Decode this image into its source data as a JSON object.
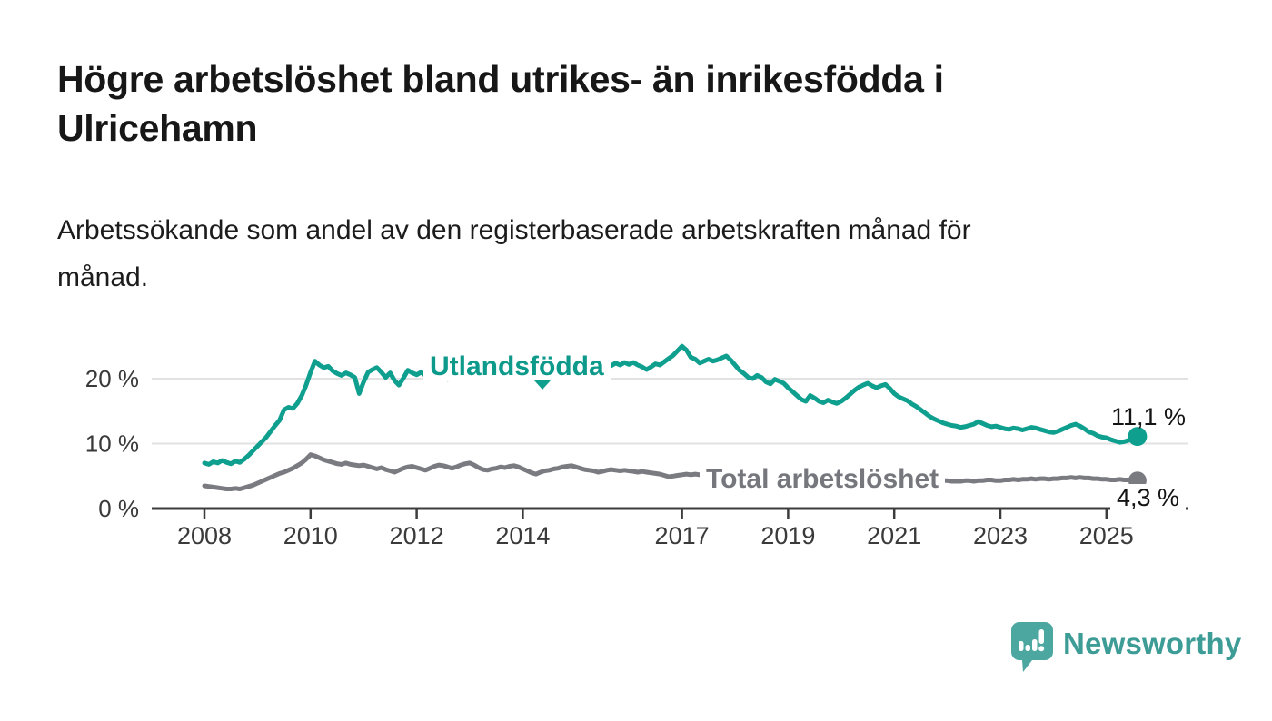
{
  "header": {
    "title_lines": [
      "Högre arbetslöshet bland utrikes- än inrikesfödda i",
      "Ulricehamn"
    ],
    "subtitle_lines": [
      "Arbetssökande som andel av den registerbaserade arbetskraften månad för",
      "månad."
    ]
  },
  "chart_data": {
    "type": "line",
    "title": "Högre arbetslöshet bland utrikes- än inrikesfödda i Ulricehamn",
    "subtitle": "Arbetssökande som andel av den registerbaserade arbetskraften månad för månad.",
    "unit": "%",
    "x_start_year": 2008,
    "x_step_years": 0.083333,
    "x_ticks": [
      {
        "year": 2008,
        "label": "2008"
      },
      {
        "year": 2010,
        "label": "2010"
      },
      {
        "year": 2012,
        "label": "2012"
      },
      {
        "year": 2014,
        "label": "2014"
      },
      {
        "year": 2017,
        "label": "2017"
      },
      {
        "year": 2019,
        "label": "2019"
      },
      {
        "year": 2021,
        "label": "2021"
      },
      {
        "year": 2023,
        "label": "2023"
      },
      {
        "year": 2025,
        "label": "2025"
      }
    ],
    "y_ticks": [
      {
        "value": 0,
        "label": "0 %"
      },
      {
        "value": 10,
        "label": "10 %"
      },
      {
        "value": 20,
        "label": "20 %"
      }
    ],
    "ylim": [
      0,
      26.5
    ],
    "grid": "horizontal",
    "legend_position": "inline-labels",
    "series": [
      {
        "name": "Utlandsfödda",
        "color": "#0f9f8f",
        "end_label": "11,1 %",
        "end_value": 11.1,
        "values": [
          7.0,
          6.8,
          7.2,
          7.0,
          7.4,
          7.1,
          6.9,
          7.3,
          7.1,
          7.6,
          8.2,
          8.9,
          9.6,
          10.3,
          11.0,
          11.9,
          12.8,
          13.6,
          15.2,
          15.6,
          15.4,
          16.2,
          17.4,
          19.0,
          21.0,
          22.7,
          22.1,
          21.7,
          21.9,
          21.2,
          20.8,
          20.5,
          20.9,
          20.6,
          20.2,
          17.7,
          19.5,
          21.0,
          21.4,
          21.7,
          21.0,
          20.2,
          20.9,
          19.7,
          19.0,
          20.1,
          21.3,
          20.9,
          20.6,
          21.0,
          20.5,
          20.8,
          20.3,
          20.6,
          20.1,
          19.9,
          20.4,
          20.7,
          21.0,
          20.8,
          21.2,
          20.9,
          21.3,
          21.0,
          20.7,
          21.1,
          20.8,
          21.2,
          20.9,
          21.1,
          20.8,
          21.0,
          21.2,
          20.9,
          21.3,
          21.6,
          21.2,
          20.9,
          21.4,
          21.1,
          20.8,
          21.2,
          21.5,
          21.3,
          21.6,
          21.3,
          21.7,
          21.5,
          21.9,
          21.6,
          22.0,
          22.3,
          22.0,
          22.4,
          22.1,
          22.5,
          22.2,
          22.5,
          22.1,
          21.8,
          21.4,
          21.8,
          22.3,
          22.1,
          22.6,
          23.1,
          23.6,
          24.3,
          25.0,
          24.4,
          23.3,
          23.0,
          22.4,
          22.7,
          23.0,
          22.7,
          22.9,
          23.2,
          23.5,
          22.9,
          22.1,
          21.3,
          20.8,
          20.2,
          20.0,
          20.5,
          20.2,
          19.5,
          19.2,
          19.9,
          19.6,
          19.3,
          18.6,
          18.0,
          17.4,
          16.8,
          16.5,
          17.4,
          17.0,
          16.5,
          16.3,
          16.7,
          16.4,
          16.2,
          16.5,
          17.0,
          17.6,
          18.2,
          18.7,
          19.0,
          19.3,
          18.9,
          18.6,
          18.9,
          19.1,
          18.5,
          17.7,
          17.2,
          16.9,
          16.6,
          16.1,
          15.7,
          15.2,
          14.7,
          14.2,
          13.8,
          13.5,
          13.2,
          13.0,
          12.8,
          12.7,
          12.5,
          12.6,
          12.8,
          13.0,
          13.4,
          13.1,
          12.8,
          12.6,
          12.7,
          12.5,
          12.3,
          12.2,
          12.4,
          12.3,
          12.1,
          12.3,
          12.5,
          12.4,
          12.2,
          12.0,
          11.8,
          11.7,
          11.9,
          12.2,
          12.5,
          12.8,
          13.0,
          12.7,
          12.3,
          11.8,
          11.6,
          11.2,
          11.0,
          10.9,
          10.6,
          10.4,
          10.2,
          10.3,
          10.5,
          10.8,
          11.1
        ]
      },
      {
        "name": "Total arbetslöshet",
        "color": "#7a7a81",
        "end_label": "4,3 %",
        "end_value": 4.3,
        "values": [
          3.5,
          3.4,
          3.3,
          3.2,
          3.1,
          3.0,
          3.0,
          3.1,
          3.0,
          3.2,
          3.4,
          3.6,
          3.9,
          4.2,
          4.5,
          4.8,
          5.1,
          5.4,
          5.6,
          5.9,
          6.2,
          6.6,
          7.0,
          7.6,
          8.3,
          8.1,
          7.8,
          7.5,
          7.3,
          7.1,
          6.9,
          6.8,
          7.0,
          6.8,
          6.7,
          6.6,
          6.7,
          6.5,
          6.3,
          6.1,
          6.3,
          6.0,
          5.8,
          5.6,
          5.9,
          6.2,
          6.4,
          6.5,
          6.3,
          6.1,
          5.9,
          6.2,
          6.5,
          6.7,
          6.6,
          6.4,
          6.2,
          6.4,
          6.7,
          6.9,
          7.0,
          6.7,
          6.3,
          6.0,
          5.9,
          6.1,
          6.2,
          6.4,
          6.3,
          6.5,
          6.6,
          6.4,
          6.1,
          5.8,
          5.5,
          5.3,
          5.6,
          5.8,
          5.9,
          6.1,
          6.2,
          6.4,
          6.5,
          6.6,
          6.4,
          6.2,
          6.0,
          5.9,
          5.8,
          5.6,
          5.7,
          5.9,
          6.0,
          5.9,
          5.8,
          5.9,
          5.8,
          5.7,
          5.6,
          5.7,
          5.6,
          5.5,
          5.4,
          5.3,
          5.1,
          4.9,
          5.0,
          5.1,
          5.2,
          5.3,
          5.2,
          5.3,
          5.2,
          5.1,
          5.0,
          5.1,
          5.0,
          4.9,
          4.9,
          5.0,
          4.9,
          4.8,
          4.8,
          4.7,
          4.7,
          4.8,
          4.7,
          4.6,
          4.6,
          4.5,
          4.6,
          4.7,
          4.6,
          4.6,
          4.5,
          4.5,
          4.6,
          4.7,
          4.6,
          4.6,
          4.7,
          4.8,
          4.9,
          5.0,
          5.1,
          5.2,
          5.5,
          5.8,
          5.9,
          6.0,
          5.9,
          5.8,
          5.7,
          5.6,
          5.5,
          5.4,
          5.3,
          5.2,
          5.1,
          5.0,
          4.9,
          4.8,
          4.7,
          4.6,
          4.5,
          4.4,
          4.4,
          4.3,
          4.3,
          4.2,
          4.2,
          4.2,
          4.3,
          4.3,
          4.2,
          4.3,
          4.3,
          4.4,
          4.4,
          4.3,
          4.3,
          4.4,
          4.4,
          4.5,
          4.4,
          4.5,
          4.5,
          4.6,
          4.5,
          4.6,
          4.6,
          4.5,
          4.6,
          4.6,
          4.7,
          4.7,
          4.8,
          4.7,
          4.8,
          4.7,
          4.7,
          4.6,
          4.6,
          4.5,
          4.5,
          4.4,
          4.4,
          4.5,
          4.4,
          4.4,
          4.3,
          4.3
        ]
      }
    ],
    "colors": {
      "grid": "#e2e2e2",
      "axis": "#3c3c3c",
      "tick_text": "#3a3a3a"
    }
  },
  "branding": {
    "logo_text": "Newsworthy",
    "logo_color": "#3d9c96",
    "logo_icon": "bar-chart-speech-bubble"
  }
}
